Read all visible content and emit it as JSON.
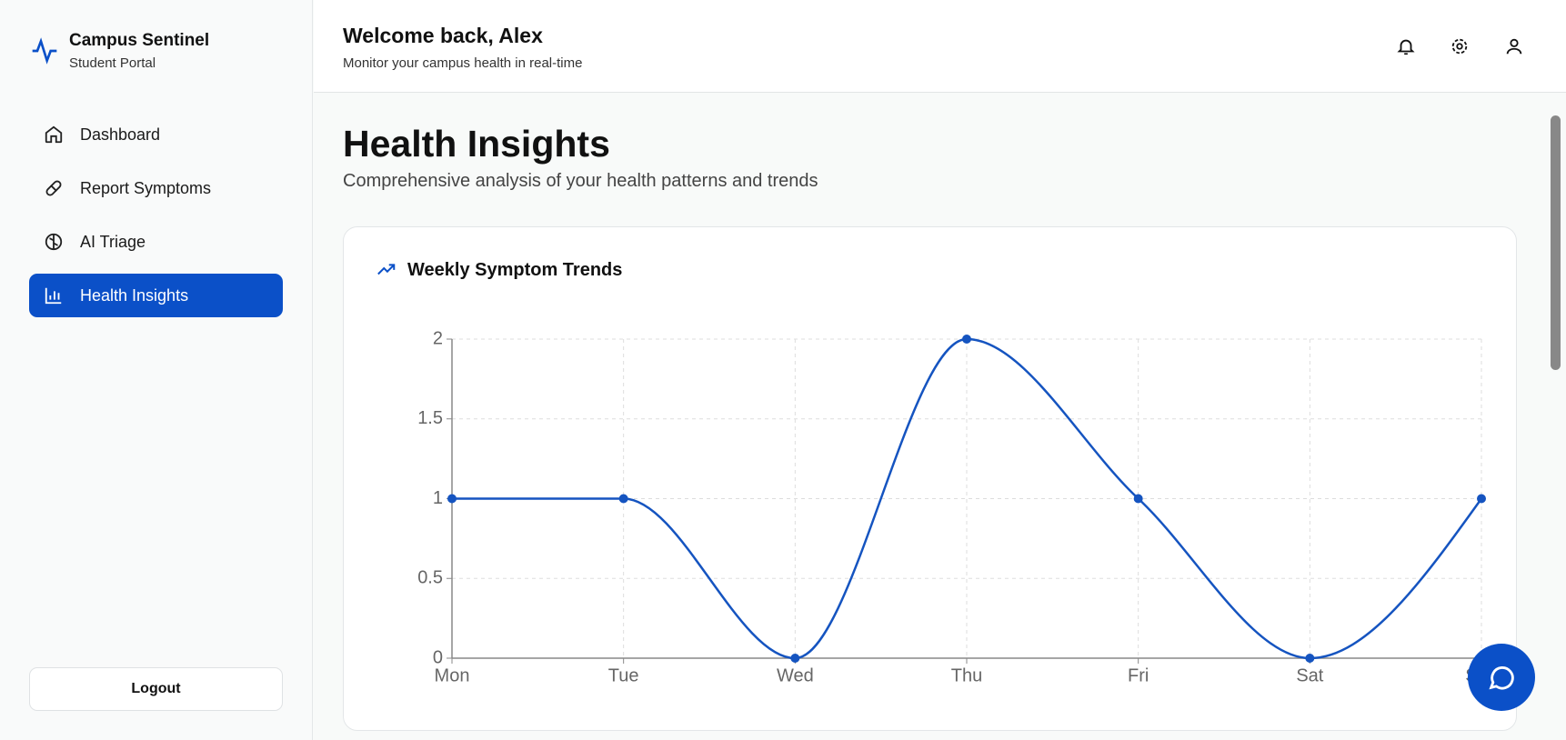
{
  "sidebar": {
    "brand": {
      "title": "Campus Sentinel",
      "subtitle": "Student Portal"
    },
    "nav": [
      "Dashboard",
      "Report Symptoms",
      "AI Triage",
      "Health Insights"
    ],
    "logout": "Logout"
  },
  "header": {
    "title": "Welcome back, Alex",
    "subtitle": "Monitor your campus health in real-time"
  },
  "page": {
    "title": "Health Insights",
    "subtitle": "Comprehensive analysis of your health patterns and trends"
  },
  "chart_data": {
    "type": "line",
    "title": "Weekly Symptom Trends",
    "categories": [
      "Mon",
      "Tue",
      "Wed",
      "Thu",
      "Fri",
      "Sat",
      "Sun"
    ],
    "values": [
      1,
      1,
      0,
      2,
      1,
      0,
      1
    ],
    "color": "#1554c0",
    "ylim": [
      0,
      2
    ],
    "yticks": [
      0,
      0.5,
      1,
      1.5,
      2
    ],
    "grid": true
  }
}
